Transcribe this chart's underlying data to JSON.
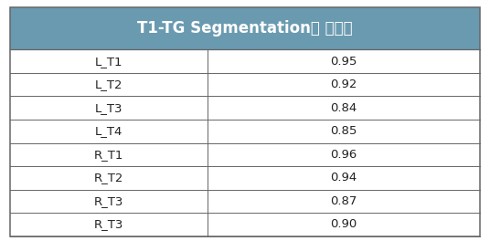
{
  "title": "T1-TG Segmentation별 정확도",
  "header_bg_color": "#6a9ab0",
  "header_text_color": "#ffffff",
  "title_fontsize": 12,
  "row_labels": [
    "L_T1",
    "L_T2",
    "L_T3",
    "L_T4",
    "R_T1",
    "R_T2",
    "R_T3",
    "R_T3"
  ],
  "values": [
    "0.95",
    "0.92",
    "0.84",
    "0.85",
    "0.96",
    "0.94",
    "0.87",
    "0.90"
  ],
  "cell_fontsize": 9.5,
  "table_bg_color": "#ffffff",
  "line_color": "#666666",
  "outer_border_color": "#666666",
  "col_split_ratio": 0.42
}
